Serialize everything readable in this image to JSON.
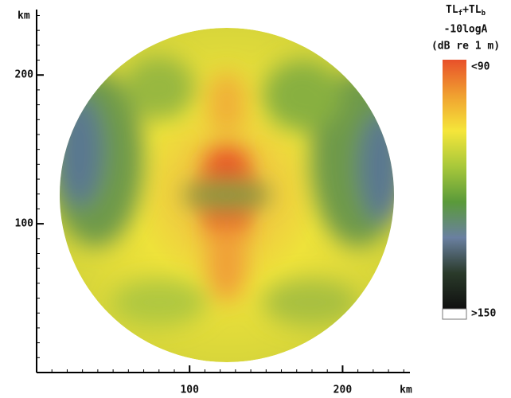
{
  "chart_data": {
    "type": "heatmap",
    "xlabel": "km",
    "ylabel": "km",
    "xlim": [
      0,
      244
    ],
    "ylim": [
      0,
      244
    ],
    "xticks": [
      100,
      200
    ],
    "yticks": [
      100,
      200
    ],
    "colorbar": {
      "title_line1": [
        "TL",
        "f",
        "+TL",
        "b"
      ],
      "title_line2": "-10logA",
      "title_line3": "(dB re 1 m)",
      "top_label": "<90",
      "bottom_label": ">150",
      "colors": [
        "#e8502a",
        "#f0a030",
        "#f5e63a",
        "#a8c83a",
        "#5a9a3a",
        "#6a80a0",
        "#2a3a2a",
        "#101010"
      ]
    }
  }
}
